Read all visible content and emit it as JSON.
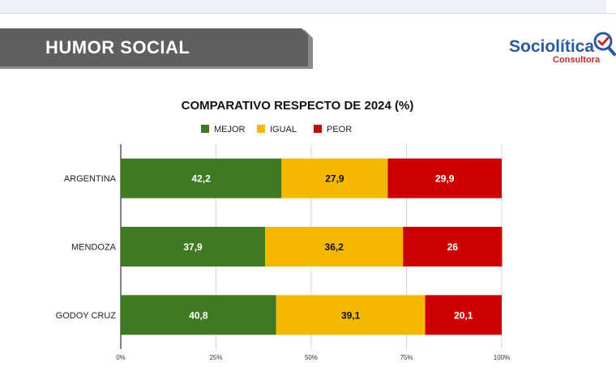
{
  "header": {
    "title": "HUMOR SOCIAL"
  },
  "logo": {
    "name": "Sociolítica",
    "subtitle": "Consultora",
    "icon": "magnifier-check-icon"
  },
  "colors": {
    "mejor": "#3f7a23",
    "igual": "#f5b800",
    "peor": "#cc0000",
    "banner": "#5f5f5f",
    "logo_blue": "#2b5a9e",
    "logo_red": "#c52a2a"
  },
  "chart_data": {
    "type": "bar",
    "orientation": "horizontal",
    "stacked": true,
    "title": "COMPARATIVO RESPECTO DE 2024 (%)",
    "categories": [
      "ARGENTINA",
      "MENDOZA",
      "GODOY CRUZ"
    ],
    "series": [
      {
        "name": "MEJOR",
        "values": [
          42.2,
          37.9,
          40.8
        ],
        "labels": [
          "42,2",
          "37,9",
          "40,8"
        ]
      },
      {
        "name": "IGUAL",
        "values": [
          27.9,
          36.2,
          39.1
        ],
        "labels": [
          "27,9",
          "36,2",
          "39,1"
        ]
      },
      {
        "name": "PEOR",
        "values": [
          29.9,
          26,
          20.1
        ],
        "labels": [
          "29,9",
          "26",
          "20,1"
        ]
      }
    ],
    "xlim": [
      0,
      100
    ],
    "x_ticks": [
      0,
      25,
      50,
      75,
      100
    ],
    "x_tick_labels": [
      "0%",
      "25%",
      "50%",
      "75%",
      "100%"
    ],
    "grid": true,
    "legend_position": "top"
  }
}
